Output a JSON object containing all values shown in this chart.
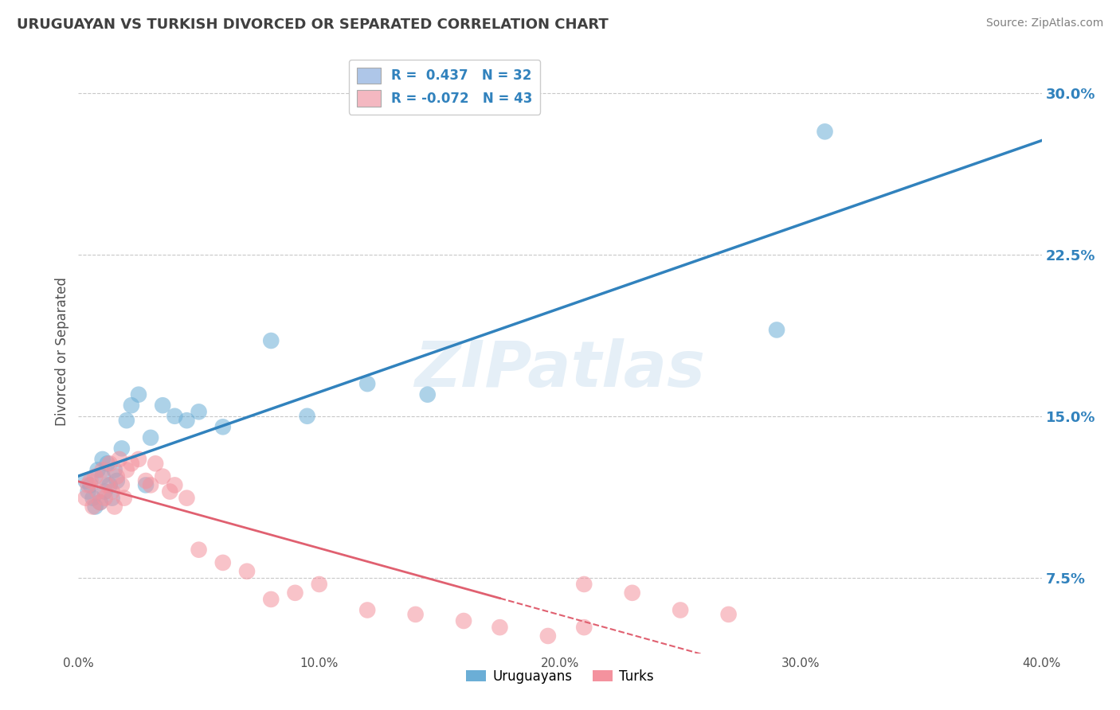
{
  "title": "URUGUAYAN VS TURKISH DIVORCED OR SEPARATED CORRELATION CHART",
  "source": "Source: ZipAtlas.com",
  "ylabel": "Divorced or Separated",
  "xlim": [
    0.0,
    0.4
  ],
  "ylim": [
    0.04,
    0.32
  ],
  "yticks": [
    0.075,
    0.15,
    0.225,
    0.3
  ],
  "ytick_labels": [
    "7.5%",
    "15.0%",
    "22.5%",
    "30.0%"
  ],
  "xticks": [
    0.0,
    0.1,
    0.2,
    0.3,
    0.4
  ],
  "xtick_labels": [
    "0.0%",
    "10.0%",
    "20.0%",
    "30.0%",
    "40.0%"
  ],
  "watermark": "ZIPatlas",
  "legend_labels": [
    "R =  0.437   N = 32",
    "R = -0.072   N = 43"
  ],
  "legend_colors": [
    "#aec6e8",
    "#f4b8c1"
  ],
  "uruguayan_x": [
    0.003,
    0.004,
    0.005,
    0.006,
    0.007,
    0.008,
    0.009,
    0.01,
    0.01,
    0.011,
    0.012,
    0.013,
    0.014,
    0.015,
    0.016,
    0.018,
    0.02,
    0.022,
    0.025,
    0.028,
    0.03,
    0.035,
    0.04,
    0.045,
    0.05,
    0.06,
    0.08,
    0.095,
    0.12,
    0.145,
    0.29,
    0.31
  ],
  "uruguayan_y": [
    0.12,
    0.115,
    0.118,
    0.112,
    0.108,
    0.125,
    0.11,
    0.122,
    0.13,
    0.115,
    0.128,
    0.118,
    0.112,
    0.125,
    0.12,
    0.135,
    0.148,
    0.155,
    0.16,
    0.118,
    0.14,
    0.155,
    0.15,
    0.148,
    0.152,
    0.145,
    0.185,
    0.15,
    0.165,
    0.16,
    0.19,
    0.282
  ],
  "turkish_x": [
    0.003,
    0.004,
    0.005,
    0.006,
    0.007,
    0.008,
    0.009,
    0.01,
    0.011,
    0.012,
    0.013,
    0.014,
    0.015,
    0.016,
    0.017,
    0.018,
    0.019,
    0.02,
    0.022,
    0.025,
    0.028,
    0.03,
    0.032,
    0.035,
    0.038,
    0.04,
    0.045,
    0.05,
    0.06,
    0.07,
    0.08,
    0.09,
    0.1,
    0.12,
    0.14,
    0.16,
    0.175,
    0.195,
    0.21,
    0.23,
    0.25,
    0.27,
    0.21
  ],
  "turkish_y": [
    0.112,
    0.118,
    0.12,
    0.108,
    0.122,
    0.115,
    0.11,
    0.125,
    0.112,
    0.118,
    0.128,
    0.115,
    0.108,
    0.122,
    0.13,
    0.118,
    0.112,
    0.125,
    0.128,
    0.13,
    0.12,
    0.118,
    0.128,
    0.122,
    0.115,
    0.118,
    0.112,
    0.088,
    0.082,
    0.078,
    0.065,
    0.068,
    0.072,
    0.06,
    0.058,
    0.055,
    0.052,
    0.048,
    0.072,
    0.068,
    0.06,
    0.058,
    0.052
  ],
  "blue_scatter_color": "#6baed6",
  "pink_scatter_color": "#f4929e",
  "blue_line_color": "#3182bd",
  "pink_line_color": "#e06070",
  "background_color": "#ffffff",
  "grid_color": "#c8c8c8",
  "title_color": "#404040",
  "source_color": "#808080",
  "axis_label_color": "#505050",
  "tick_color": "#505050"
}
